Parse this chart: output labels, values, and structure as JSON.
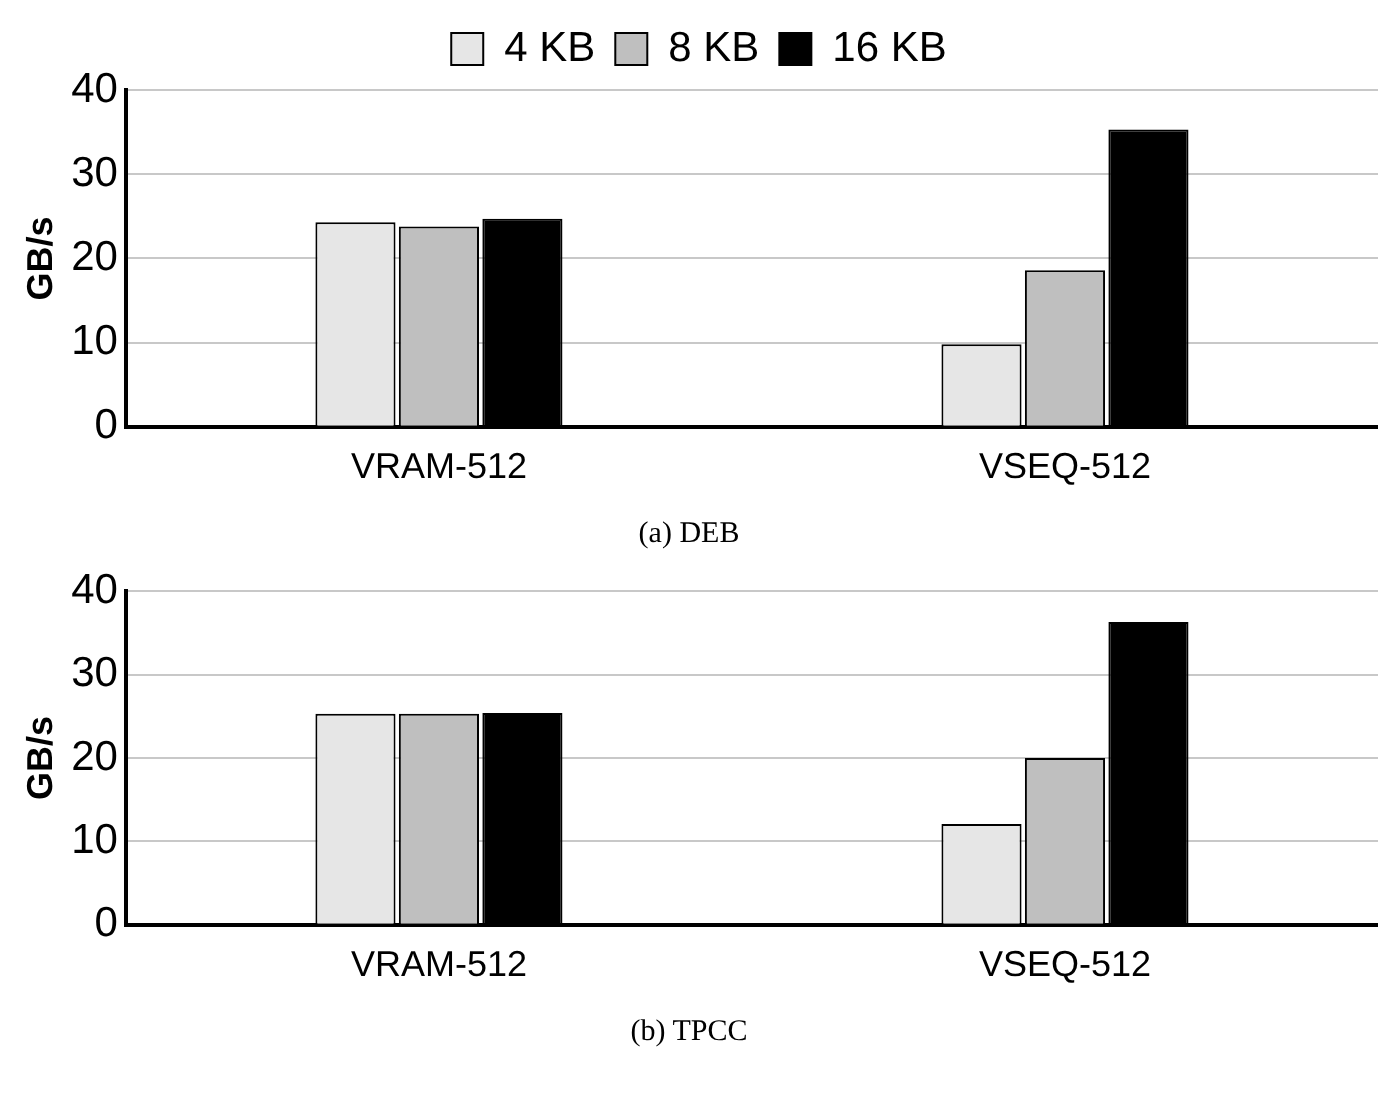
{
  "chart_data": [
    {
      "type": "bar",
      "categories": [
        "VRAM-512",
        "VSEQ-512"
      ],
      "ylabel": "GB/s",
      "ylim": [
        0,
        40
      ],
      "yticks": [
        0,
        10,
        20,
        30,
        40
      ],
      "grid": "y",
      "legend": "top",
      "annotations": [
        "(a) DEB"
      ],
      "series": [
        {
          "name": "4 KB",
          "color": "#e6e6e6",
          "values": [
            24.3,
            9.8
          ]
        },
        {
          "name": "8 KB",
          "color": "#bfbfbf",
          "values": [
            23.8,
            18.6
          ]
        },
        {
          "name": "16 KB",
          "color": "#000000",
          "values": [
            24.7,
            35.3
          ]
        }
      ]
    },
    {
      "type": "bar",
      "categories": [
        "VRAM-512",
        "VSEQ-512"
      ],
      "ylabel": "GB/s",
      "ylim": [
        0,
        40
      ],
      "yticks": [
        0,
        10,
        20,
        30,
        40
      ],
      "grid": "y",
      "annotations": [
        "(b) TPCC"
      ],
      "series": [
        {
          "color": "#e6e6e6",
          "values": [
            25.3,
            12.1
          ]
        },
        {
          "color": "#bfbfbf",
          "values": [
            25.3,
            20.0
          ]
        },
        {
          "color": "#000000",
          "values": [
            25.4,
            36.3
          ]
        }
      ]
    }
  ]
}
